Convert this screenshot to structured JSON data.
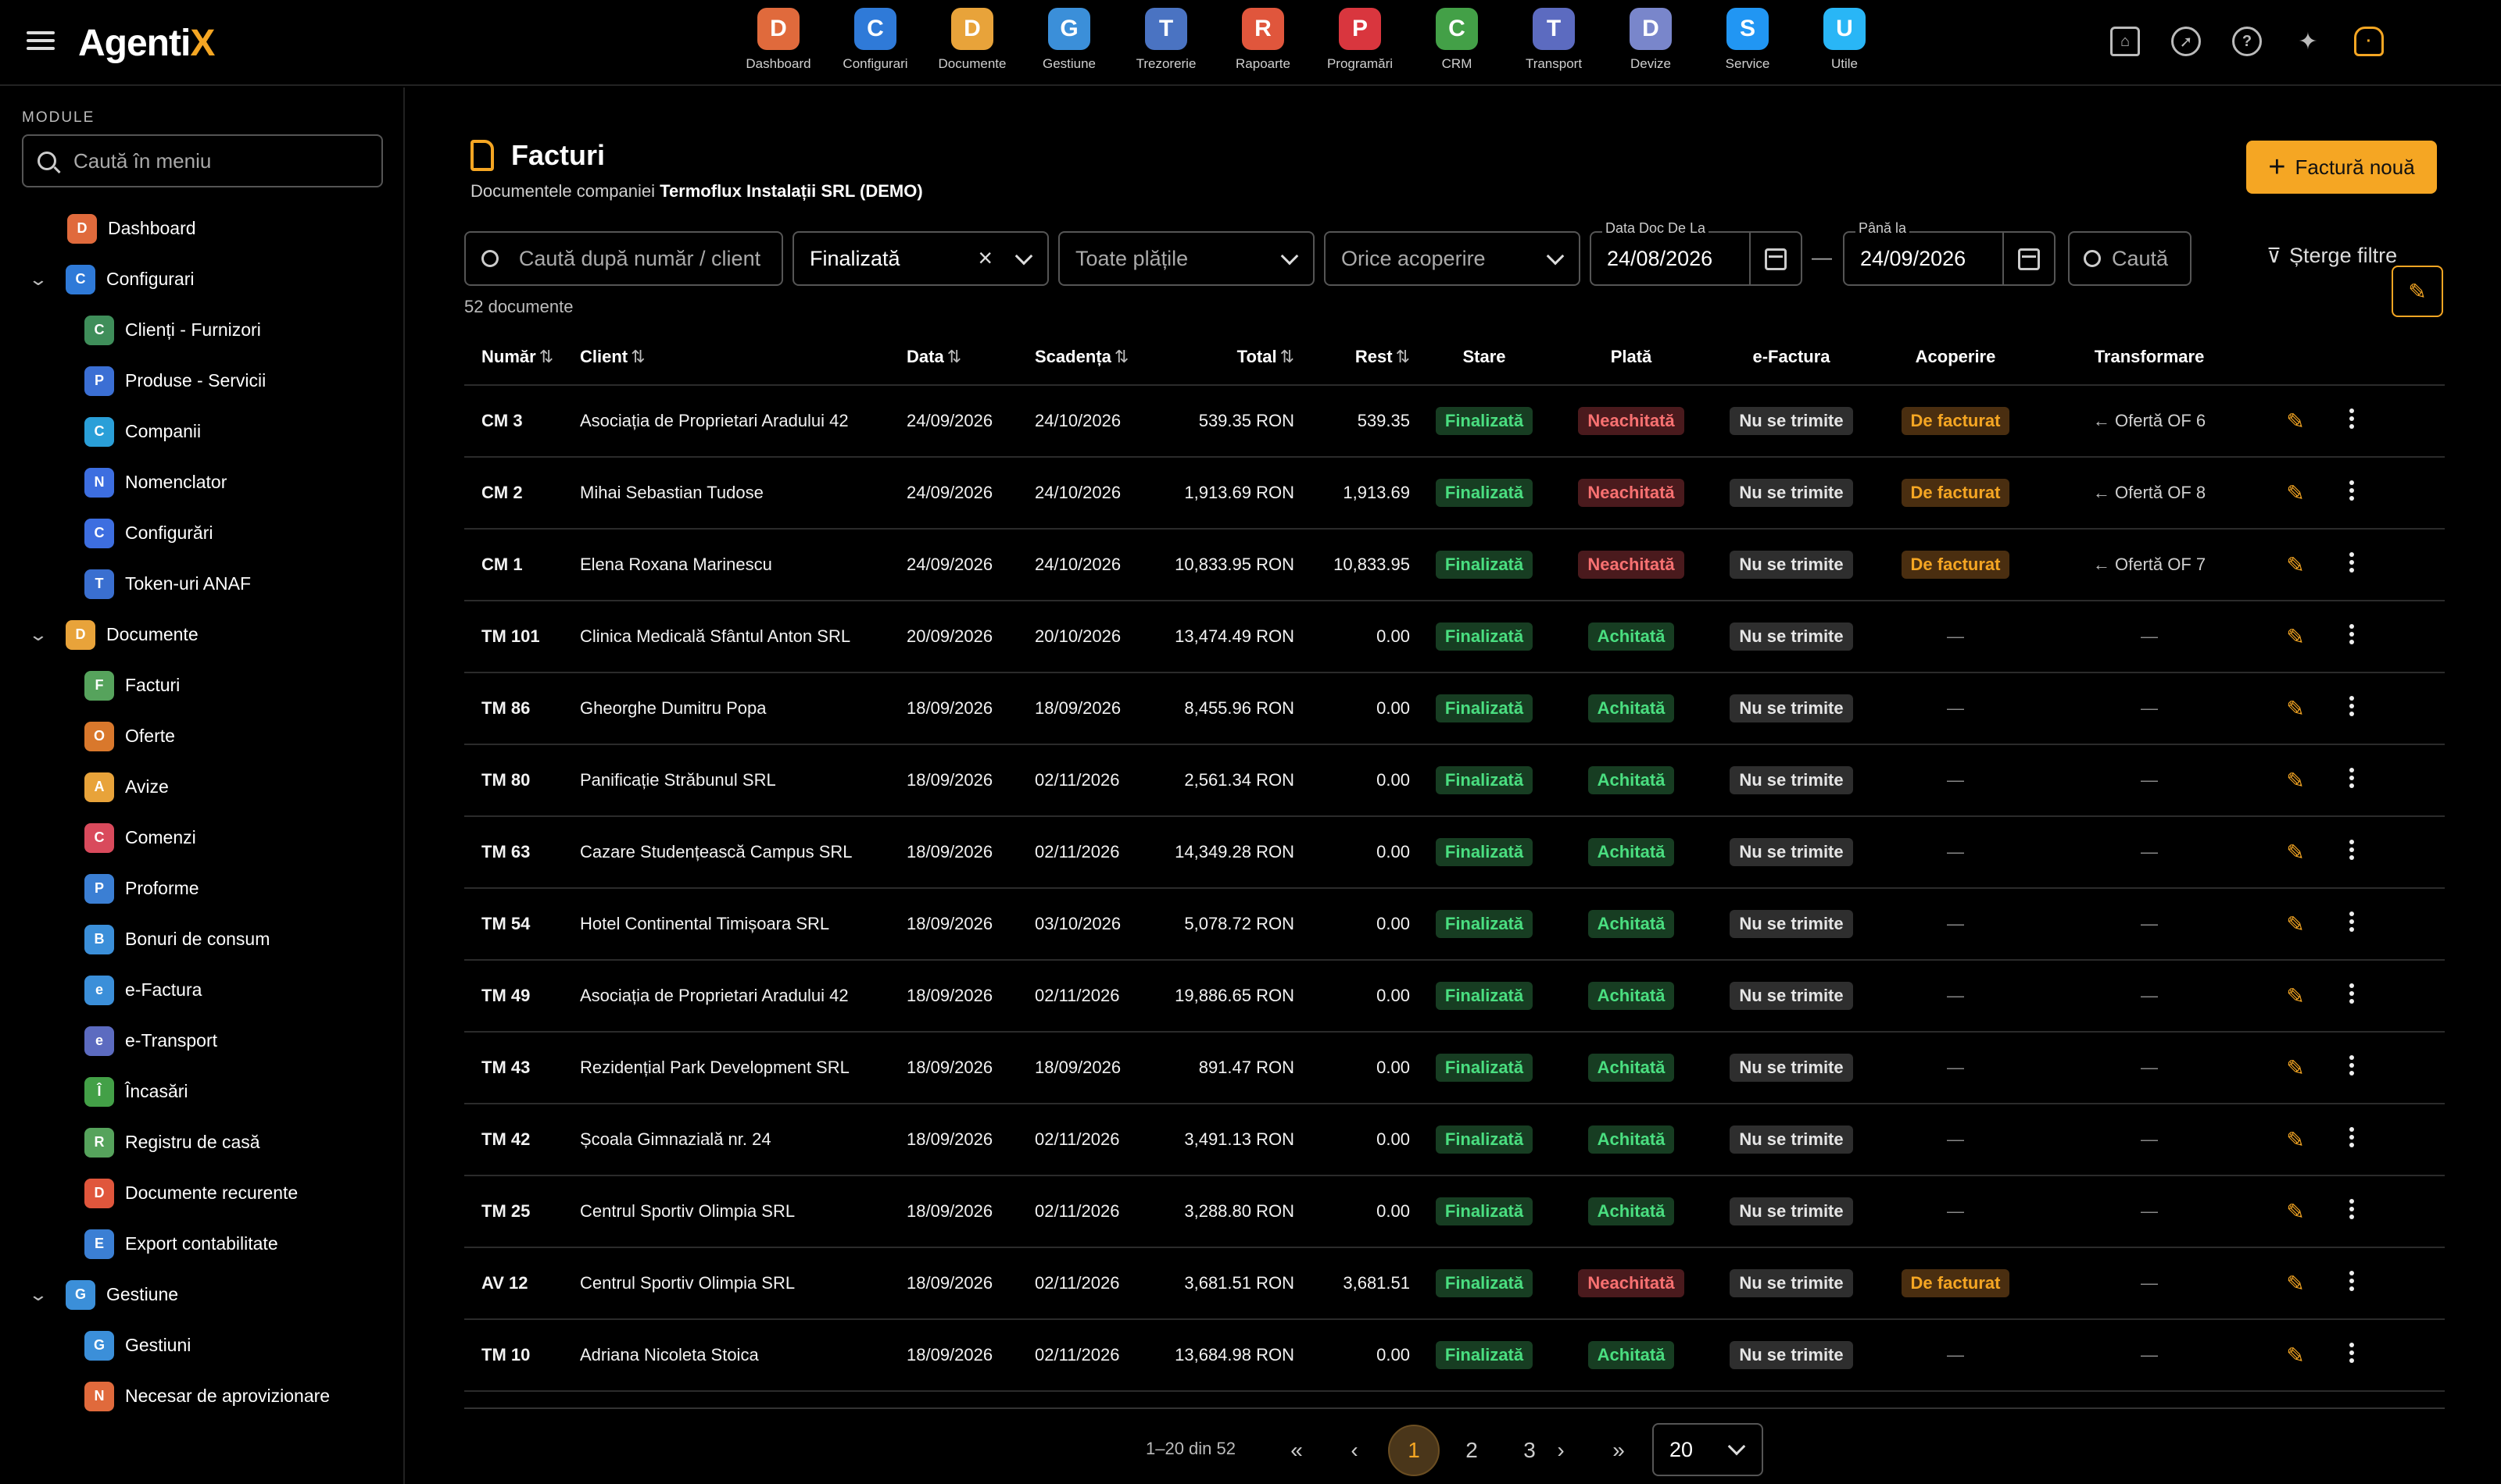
{
  "app": {
    "logo_main": "Agenti",
    "logo_accent": "X"
  },
  "modules": [
    {
      "label": "Dashboard",
      "icon": "dashboard-chart-icon",
      "color": "#e06a3c"
    },
    {
      "label": "Configurari",
      "icon": "gear-icon",
      "color": "#2f7ad8"
    },
    {
      "label": "Documente",
      "icon": "documents-icon",
      "color": "#e8a33a"
    },
    {
      "label": "Gestiune",
      "icon": "warehouse-box-icon",
      "color": "#3b8fd9"
    },
    {
      "label": "Trezorerie",
      "icon": "bank-icon",
      "color": "#4a73c2"
    },
    {
      "label": "Rapoarte",
      "icon": "report-pie-icon",
      "color": "#e0563c"
    },
    {
      "label": "Programări",
      "icon": "clock-icon",
      "color": "#d9363e"
    },
    {
      "label": "CRM",
      "icon": "crm-cycle-icon",
      "color": "#43a047"
    },
    {
      "label": "Transport",
      "icon": "truck-icon",
      "color": "#5c6bc0"
    },
    {
      "label": "Devize",
      "icon": "estimate-clipboard-icon",
      "color": "#7986cb"
    },
    {
      "label": "Service",
      "icon": "service-tools-icon",
      "color": "#2196f3"
    },
    {
      "label": "Utile",
      "icon": "help-question-icon",
      "color": "#29b6f6"
    }
  ],
  "sidebar": {
    "title": "MODULE",
    "search_placeholder": "Caută în meniu",
    "items": [
      {
        "label": "Dashboard",
        "type": "top",
        "icon": "dashboard-chart-icon",
        "color": "#e06a3c"
      },
      {
        "label": "Configurari",
        "type": "group",
        "icon": "gear-icon",
        "color": "#2f7ad8"
      },
      {
        "label": "Clienți - Furnizori",
        "type": "sub",
        "icon": "users-icon",
        "color": "#3f8e5a"
      },
      {
        "label": "Produse - Servicii",
        "type": "sub",
        "icon": "products-icon",
        "color": "#3b6fd4"
      },
      {
        "label": "Companii",
        "type": "sub",
        "icon": "company-icon",
        "color": "#2a9fd8"
      },
      {
        "label": "Nomenclator",
        "type": "sub",
        "icon": "list-icon",
        "color": "#3d6ee0"
      },
      {
        "label": "Configurări",
        "type": "sub",
        "icon": "settings-list-icon",
        "color": "#3d6ee0"
      },
      {
        "label": "Token-uri ANAF",
        "type": "sub",
        "icon": "shield-icon",
        "color": "#3a6fd0"
      },
      {
        "label": "Documente",
        "type": "group",
        "icon": "documents-icon",
        "color": "#e8a33a"
      },
      {
        "label": "Facturi",
        "type": "sub",
        "icon": "invoice-icon",
        "color": "#56a35c"
      },
      {
        "label": "Oferte",
        "type": "sub",
        "icon": "offer-icon",
        "color": "#d9782c"
      },
      {
        "label": "Avize",
        "type": "sub",
        "icon": "delivery-icon",
        "color": "#e8a33a"
      },
      {
        "label": "Comenzi",
        "type": "sub",
        "icon": "cart-icon",
        "color": "#d94a5c"
      },
      {
        "label": "Proforme",
        "type": "sub",
        "icon": "proforma-icon",
        "color": "#3b7fd4"
      },
      {
        "label": "Bonuri de consum",
        "type": "sub",
        "icon": "receipt-icon",
        "color": "#3b8fd9"
      },
      {
        "label": "e-Factura",
        "type": "sub",
        "icon": "cloud-icon",
        "color": "#3b8fd9"
      },
      {
        "label": "e-Transport",
        "type": "sub",
        "icon": "etransport-icon",
        "color": "#5c6bc0"
      },
      {
        "label": "Încasări",
        "type": "sub",
        "icon": "income-chart-icon",
        "color": "#43a047"
      },
      {
        "label": "Registru de casă",
        "type": "sub",
        "icon": "cash-register-icon",
        "color": "#56a35c"
      },
      {
        "label": "Documente recurente",
        "type": "sub",
        "icon": "recurring-icon",
        "color": "#e0563c"
      },
      {
        "label": "Export contabilitate",
        "type": "sub",
        "icon": "export-icon",
        "color": "#3b7fd4"
      },
      {
        "label": "Gestiune",
        "type": "group",
        "icon": "warehouse-box-icon",
        "color": "#3b8fd9"
      },
      {
        "label": "Gestiuni",
        "type": "sub",
        "icon": "warehouse-icon",
        "color": "#3b8fd9"
      },
      {
        "label": "Necesar de aprovizionare",
        "type": "sub",
        "icon": "supply-hex-icon",
        "color": "#e06a3c"
      }
    ]
  },
  "page": {
    "title": "Facturi",
    "subtitle_prefix": "Documentele companiei ",
    "company": "Termoflux Instalații SRL (DEMO)",
    "new_button": "Factură nouă",
    "doc_count": "52 documente"
  },
  "filters": {
    "search_placeholder": "Caută după număr / client",
    "status_value": "Finalizată",
    "payment_value": "Toate plățile",
    "coverage_value": "Orice acoperire",
    "date_from_label": "Data Doc De La",
    "date_from": "24/08/2026",
    "date_to_label": "Până la",
    "date_to": "24/09/2026",
    "search_button": "Caută",
    "clear_button": "Șterge filtre",
    "date_separator": "—"
  },
  "table": {
    "headers": {
      "numar": "Număr",
      "client": "Client",
      "data": "Data",
      "scadenta": "Scadența",
      "total": "Total",
      "rest": "Rest",
      "stare": "Stare",
      "plata": "Plată",
      "efactura": "e-Factura",
      "acoperire": "Acoperire",
      "transformare": "Transformare"
    },
    "rows": [
      {
        "nr": "CM 3",
        "client": "Asociația de Proprietari Aradului 42",
        "data": "24/09/2026",
        "scad": "24/10/2026",
        "total": "539.35 RON",
        "rest": "539.35",
        "stare": "Finalizată",
        "plata": "Neachitată",
        "ef": "Nu se trimite",
        "acop": "De facturat",
        "transf": "Ofertă OF 6"
      },
      {
        "nr": "CM 2",
        "client": "Mihai Sebastian Tudose",
        "data": "24/09/2026",
        "scad": "24/10/2026",
        "total": "1,913.69 RON",
        "rest": "1,913.69",
        "stare": "Finalizată",
        "plata": "Neachitată",
        "ef": "Nu se trimite",
        "acop": "De facturat",
        "transf": "Ofertă OF 8"
      },
      {
        "nr": "CM 1",
        "client": "Elena Roxana Marinescu",
        "data": "24/09/2026",
        "scad": "24/10/2026",
        "total": "10,833.95 RON",
        "rest": "10,833.95",
        "stare": "Finalizată",
        "plata": "Neachitată",
        "ef": "Nu se trimite",
        "acop": "De facturat",
        "transf": "Ofertă OF 7"
      },
      {
        "nr": "TM 101",
        "client": "Clinica Medicală Sfântul Anton SRL",
        "data": "20/09/2026",
        "scad": "20/10/2026",
        "total": "13,474.49 RON",
        "rest": "0.00",
        "stare": "Finalizată",
        "plata": "Achitată",
        "ef": "Nu se trimite",
        "acop": "—",
        "transf": "—"
      },
      {
        "nr": "TM 86",
        "client": "Gheorghe Dumitru Popa",
        "data": "18/09/2026",
        "scad": "18/09/2026",
        "total": "8,455.96 RON",
        "rest": "0.00",
        "stare": "Finalizată",
        "plata": "Achitată",
        "ef": "Nu se trimite",
        "acop": "—",
        "transf": "—"
      },
      {
        "nr": "TM 80",
        "client": "Panificație Străbunul SRL",
        "data": "18/09/2026",
        "scad": "02/11/2026",
        "total": "2,561.34 RON",
        "rest": "0.00",
        "stare": "Finalizată",
        "plata": "Achitată",
        "ef": "Nu se trimite",
        "acop": "—",
        "transf": "—"
      },
      {
        "nr": "TM 63",
        "client": "Cazare Studențească Campus SRL",
        "data": "18/09/2026",
        "scad": "02/11/2026",
        "total": "14,349.28 RON",
        "rest": "0.00",
        "stare": "Finalizată",
        "plata": "Achitată",
        "ef": "Nu se trimite",
        "acop": "—",
        "transf": "—"
      },
      {
        "nr": "TM 54",
        "client": "Hotel Continental Timișoara SRL",
        "data": "18/09/2026",
        "scad": "03/10/2026",
        "total": "5,078.72 RON",
        "rest": "0.00",
        "stare": "Finalizată",
        "plata": "Achitată",
        "ef": "Nu se trimite",
        "acop": "—",
        "transf": "—"
      },
      {
        "nr": "TM 49",
        "client": "Asociația de Proprietari Aradului 42",
        "data": "18/09/2026",
        "scad": "02/11/2026",
        "total": "19,886.65 RON",
        "rest": "0.00",
        "stare": "Finalizată",
        "plata": "Achitată",
        "ef": "Nu se trimite",
        "acop": "—",
        "transf": "—"
      },
      {
        "nr": "TM 43",
        "client": "Rezidențial Park Development SRL",
        "data": "18/09/2026",
        "scad": "18/09/2026",
        "total": "891.47 RON",
        "rest": "0.00",
        "stare": "Finalizată",
        "plata": "Achitată",
        "ef": "Nu se trimite",
        "acop": "—",
        "transf": "—"
      },
      {
        "nr": "TM 42",
        "client": "Școala Gimnazială nr. 24",
        "data": "18/09/2026",
        "scad": "02/11/2026",
        "total": "3,491.13 RON",
        "rest": "0.00",
        "stare": "Finalizată",
        "plata": "Achitată",
        "ef": "Nu se trimite",
        "acop": "—",
        "transf": "—"
      },
      {
        "nr": "TM 25",
        "client": "Centrul Sportiv Olimpia SRL",
        "data": "18/09/2026",
        "scad": "02/11/2026",
        "total": "3,288.80 RON",
        "rest": "0.00",
        "stare": "Finalizată",
        "plata": "Achitată",
        "ef": "Nu se trimite",
        "acop": "—",
        "transf": "—"
      },
      {
        "nr": "AV 12",
        "client": "Centrul Sportiv Olimpia SRL",
        "data": "18/09/2026",
        "scad": "02/11/2026",
        "total": "3,681.51 RON",
        "rest": "3,681.51",
        "stare": "Finalizată",
        "plata": "Neachitată",
        "ef": "Nu se trimite",
        "acop": "De facturat",
        "transf": "—"
      },
      {
        "nr": "TM 10",
        "client": "Adriana Nicoleta Stoica",
        "data": "18/09/2026",
        "scad": "02/11/2026",
        "total": "13,684.98 RON",
        "rest": "0.00",
        "stare": "Finalizată",
        "plata": "Achitată",
        "ef": "Nu se trimite",
        "acop": "—",
        "transf": "—"
      }
    ]
  },
  "pagination": {
    "range_text": "1–20 din 52",
    "pages": [
      "1",
      "2",
      "3"
    ],
    "current_page": "1",
    "page_size": "20"
  },
  "colors": {
    "accent": "#f5a623",
    "success": "#4ade80",
    "danger": "#f87171"
  }
}
